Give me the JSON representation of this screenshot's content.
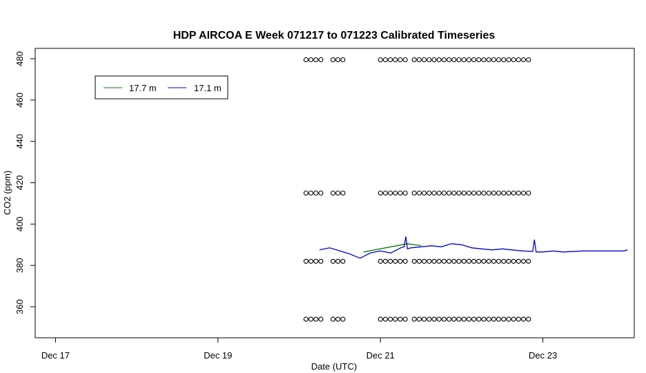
{
  "chart_data": {
    "type": "line",
    "title": "HDP AIRCOA E  Week 071217 to 071223  Calibrated Timeseries",
    "xlabel": "Date (UTC)",
    "ylabel": "CO2 (ppm)",
    "xlim": [
      "2007-12-16T18:00",
      "2007-12-24T03:00"
    ],
    "ylim": [
      345,
      485
    ],
    "x_ticks": [
      {
        "value": "2007-12-17",
        "label": "Dec 17"
      },
      {
        "value": "2007-12-19",
        "label": "Dec 19"
      },
      {
        "value": "2007-12-21",
        "label": "Dec 21"
      },
      {
        "value": "2007-12-23",
        "label": "Dec 23"
      }
    ],
    "y_ticks": [
      360,
      380,
      400,
      420,
      440,
      460,
      480
    ],
    "grid": false,
    "legend": {
      "placement": "top-left",
      "entries": [
        "17.7 m",
        "17.1 m"
      ]
    },
    "series": [
      {
        "name": "17.7 m",
        "color": "#008000",
        "style": "line",
        "x": [
          "2007-12-20T19:00",
          "2007-12-21T08:00",
          "2007-12-21T10:00",
          "2007-12-21T12:00"
        ],
        "y": [
          386.5,
          390.5,
          390.0,
          389.6
        ]
      },
      {
        "name": "17.1 m",
        "color": "#0000cc",
        "style": "line",
        "x": [
          "2007-12-20T06:00",
          "2007-12-20T09:00",
          "2007-12-20T12:00",
          "2007-12-20T15:00",
          "2007-12-20T18:00",
          "2007-12-20T21:00",
          "2007-12-21T00:00",
          "2007-12-21T03:00",
          "2007-12-21T06:00",
          "2007-12-21T07:00",
          "2007-12-21T07:30",
          "2007-12-21T08:00",
          "2007-12-21T09:00",
          "2007-12-21T12:00",
          "2007-12-21T15:00",
          "2007-12-21T18:00",
          "2007-12-21T21:00",
          "2007-12-22T00:00",
          "2007-12-22T03:00",
          "2007-12-22T06:00",
          "2007-12-22T09:00",
          "2007-12-22T12:00",
          "2007-12-22T18:00",
          "2007-12-22T21:00",
          "2007-12-22T21:30",
          "2007-12-22T22:00",
          "2007-12-23T00:00",
          "2007-12-23T03:00",
          "2007-12-23T06:00",
          "2007-12-23T12:00",
          "2007-12-23T18:00",
          "2007-12-24T00:00",
          "2007-12-24T01:00"
        ],
        "y": [
          387.5,
          388.5,
          387.0,
          385.5,
          383.5,
          386.0,
          387.0,
          386.0,
          388.5,
          389.0,
          394.0,
          388.0,
          388.5,
          389.0,
          389.5,
          389.0,
          390.5,
          390.0,
          388.5,
          388.0,
          387.5,
          388.0,
          387.0,
          386.8,
          392.5,
          386.5,
          386.5,
          387.0,
          386.5,
          387.0,
          387.0,
          387.0,
          387.5
        ]
      },
      {
        "name": "",
        "style": "markers",
        "marker": "open-circle",
        "levels": [
          354,
          382,
          415,
          479.5
        ],
        "runs": [
          [
            "2007-12-20T02:00",
            "2007-12-20T07:00"
          ],
          [
            "2007-12-20T10:00",
            "2007-12-20T13:00"
          ],
          [
            "2007-12-21T00:00",
            "2007-12-21T08:00"
          ],
          [
            "2007-12-21T10:00",
            "2007-12-22T20:00"
          ]
        ]
      }
    ]
  }
}
